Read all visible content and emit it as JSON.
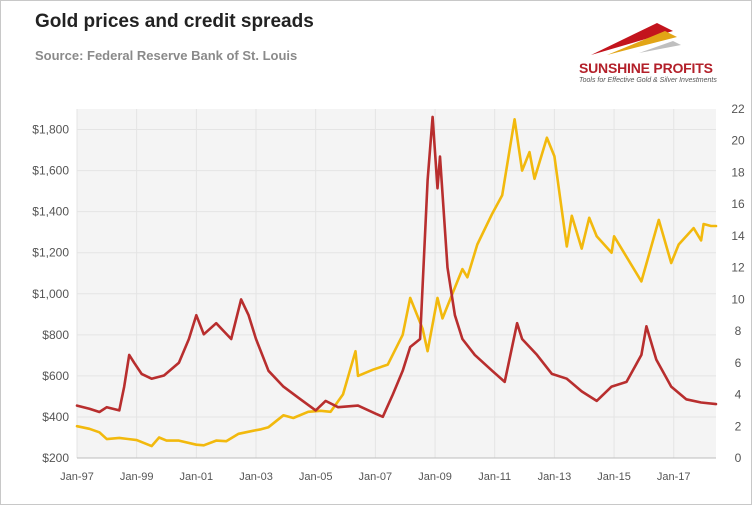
{
  "header": {
    "title": "Gold prices and credit spreads",
    "subtitle": "Source: Federal Reserve Bank of St. Louis"
  },
  "logo": {
    "name": "SUNSHINE PROFITS",
    "tagline": "Tools for Effective Gold & Silver Investments",
    "colors": [
      "#c3141d",
      "#e2a516",
      "#bfbfbf"
    ]
  },
  "colors": {
    "gold": "#f2b90d",
    "spread": "#b82e2e",
    "grid": "#e4e4e4",
    "plot_background": "#f4f4f4",
    "axis_text": "#555555"
  },
  "chart_data": {
    "type": "line",
    "grid": true,
    "legend": "none",
    "x_start": "1997-01",
    "x_end": "2018-06",
    "x_ticks": [
      "Jan-97",
      "Jan-99",
      "Jan-01",
      "Jan-03",
      "Jan-05",
      "Jan-07",
      "Jan-09",
      "Jan-11",
      "Jan-13",
      "Jan-15",
      "Jan-17"
    ],
    "y_left": {
      "ticks": [
        "$200",
        "$400",
        "$600",
        "$800",
        "$1,000",
        "$1,200",
        "$1,400",
        "$1,600",
        "$1,800"
      ],
      "range": [
        200,
        1900
      ]
    },
    "y_right": {
      "ticks": [
        "0",
        "2",
        "4",
        "6",
        "8",
        "10",
        "12",
        "14",
        "16",
        "18",
        "20",
        "22"
      ],
      "range": [
        0,
        22
      ]
    },
    "series": [
      {
        "key": "gold",
        "axis": "left",
        "points": [
          [
            "1997-01",
            355
          ],
          [
            "1997-06",
            342
          ],
          [
            "1997-10",
            325
          ],
          [
            "1998-01",
            292
          ],
          [
            "1998-06",
            298
          ],
          [
            "1999-01",
            287
          ],
          [
            "1999-07",
            258
          ],
          [
            "1999-10",
            300
          ],
          [
            "2000-01",
            285
          ],
          [
            "2000-06",
            285
          ],
          [
            "2001-01",
            265
          ],
          [
            "2001-04",
            262
          ],
          [
            "2001-09",
            285
          ],
          [
            "2002-01",
            282
          ],
          [
            "2002-06",
            318
          ],
          [
            "2002-12",
            333
          ],
          [
            "2003-03",
            340
          ],
          [
            "2003-06",
            350
          ],
          [
            "2003-12",
            408
          ],
          [
            "2004-04",
            395
          ],
          [
            "2004-10",
            425
          ],
          [
            "2005-03",
            430
          ],
          [
            "2005-07",
            425
          ],
          [
            "2005-12",
            510
          ],
          [
            "2006-05",
            720
          ],
          [
            "2006-06",
            600
          ],
          [
            "2006-12",
            630
          ],
          [
            "2007-06",
            655
          ],
          [
            "2007-12",
            800
          ],
          [
            "2008-03",
            980
          ],
          [
            "2008-08",
            830
          ],
          [
            "2008-10",
            720
          ],
          [
            "2009-02",
            980
          ],
          [
            "2009-04",
            880
          ],
          [
            "2009-10",
            1060
          ],
          [
            "2009-12",
            1120
          ],
          [
            "2010-02",
            1080
          ],
          [
            "2010-06",
            1240
          ],
          [
            "2010-12",
            1390
          ],
          [
            "2011-04",
            1480
          ],
          [
            "2011-09",
            1850
          ],
          [
            "2011-12",
            1600
          ],
          [
            "2012-03",
            1690
          ],
          [
            "2012-05",
            1560
          ],
          [
            "2012-10",
            1760
          ],
          [
            "2013-01",
            1670
          ],
          [
            "2013-06",
            1230
          ],
          [
            "2013-08",
            1380
          ],
          [
            "2013-12",
            1220
          ],
          [
            "2014-03",
            1370
          ],
          [
            "2014-06",
            1280
          ],
          [
            "2014-12",
            1200
          ],
          [
            "2015-01",
            1280
          ],
          [
            "2015-06",
            1180
          ],
          [
            "2015-12",
            1060
          ],
          [
            "2016-07",
            1360
          ],
          [
            "2016-12",
            1150
          ],
          [
            "2017-03",
            1240
          ],
          [
            "2017-09",
            1320
          ],
          [
            "2017-12",
            1260
          ],
          [
            "2018-01",
            1340
          ],
          [
            "2018-04",
            1330
          ],
          [
            "2018-06",
            1330
          ]
        ]
      },
      {
        "key": "spread",
        "axis": "right",
        "points": [
          [
            "1997-01",
            3.3
          ],
          [
            "1997-06",
            3.1
          ],
          [
            "1997-10",
            2.9
          ],
          [
            "1998-01",
            3.2
          ],
          [
            "1998-06",
            3.0
          ],
          [
            "1998-08",
            4.5
          ],
          [
            "1998-10",
            6.5
          ],
          [
            "1998-12",
            6.0
          ],
          [
            "1999-03",
            5.3
          ],
          [
            "1999-07",
            5.0
          ],
          [
            "1999-12",
            5.2
          ],
          [
            "2000-06",
            6.0
          ],
          [
            "2000-10",
            7.5
          ],
          [
            "2001-01",
            9.0
          ],
          [
            "2001-04",
            7.8
          ],
          [
            "2001-09",
            8.5
          ],
          [
            "2001-12",
            8.0
          ],
          [
            "2002-03",
            7.5
          ],
          [
            "2002-07",
            10.0
          ],
          [
            "2002-10",
            9.0
          ],
          [
            "2003-01",
            7.5
          ],
          [
            "2003-06",
            5.5
          ],
          [
            "2003-12",
            4.5
          ],
          [
            "2004-06",
            3.8
          ],
          [
            "2005-01",
            3.0
          ],
          [
            "2005-05",
            3.6
          ],
          [
            "2005-10",
            3.2
          ],
          [
            "2006-06",
            3.3
          ],
          [
            "2007-01",
            2.8
          ],
          [
            "2007-04",
            2.6
          ],
          [
            "2007-08",
            4.0
          ],
          [
            "2007-12",
            5.5
          ],
          [
            "2008-03",
            7.0
          ],
          [
            "2008-07",
            7.5
          ],
          [
            "2008-10",
            17.5
          ],
          [
            "2008-12",
            21.5
          ],
          [
            "2009-02",
            17.0
          ],
          [
            "2009-03",
            19.0
          ],
          [
            "2009-06",
            12.0
          ],
          [
            "2009-09",
            9.0
          ],
          [
            "2009-12",
            7.5
          ],
          [
            "2010-05",
            6.5
          ],
          [
            "2010-12",
            5.5
          ],
          [
            "2011-05",
            4.8
          ],
          [
            "2011-10",
            8.5
          ],
          [
            "2011-12",
            7.5
          ],
          [
            "2012-06",
            6.5
          ],
          [
            "2012-12",
            5.3
          ],
          [
            "2013-06",
            5.0
          ],
          [
            "2013-12",
            4.2
          ],
          [
            "2014-06",
            3.6
          ],
          [
            "2014-12",
            4.5
          ],
          [
            "2015-06",
            4.8
          ],
          [
            "2015-12",
            6.5
          ],
          [
            "2016-02",
            8.3
          ],
          [
            "2016-06",
            6.2
          ],
          [
            "2016-12",
            4.5
          ],
          [
            "2017-06",
            3.7
          ],
          [
            "2017-12",
            3.5
          ],
          [
            "2018-06",
            3.4
          ]
        ]
      }
    ]
  }
}
